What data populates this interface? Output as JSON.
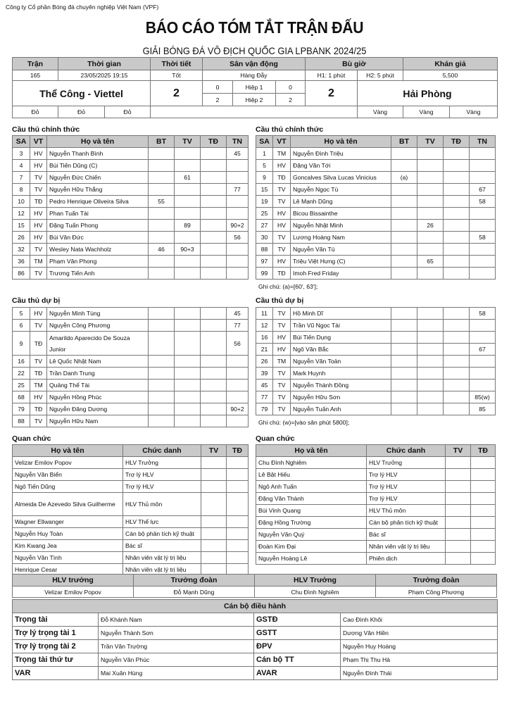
{
  "header": {
    "organization": "Công ty Cổ phần Bóng đá chuyên nghiệp Việt Nam (VPF)",
    "title": "BÁO CÁO TÓM TẮT TRẬN ĐẤU",
    "subtitle": "GIẢI BÓNG ĐÁ VÔ ĐỊCH QUỐC GIA LPBANK 2024/25"
  },
  "match": {
    "headers": [
      "Trận",
      "Thời gian",
      "Thời tiết",
      "Sân vận động",
      "Bù giờ",
      "Khán giả"
    ],
    "number": "165",
    "datetime": "23/05/2025 19:15",
    "weather": "Tốt",
    "stadium": "Hàng Đẫy",
    "stoppage_h1": "H1: 1 phút",
    "stoppage_h2": "H2: 5 phút",
    "attendance": "5,500",
    "home_team": "Thể Công - Viettel",
    "home_score": "2",
    "away_team": "Hải Phòng",
    "away_score": "2",
    "half1": {
      "label": "Hiệp 1",
      "home": "0",
      "away": "0"
    },
    "half2": {
      "label": "Hiệp 2",
      "home": "2",
      "away": "2"
    },
    "home_colors": [
      "Đỏ",
      "Đỏ",
      "Đỏ"
    ],
    "away_colors": [
      "Vàng",
      "Vàng",
      "Vàng"
    ]
  },
  "labels": {
    "starters": "Cầu thủ chính thức",
    "subs": "Cầu thủ dự bị",
    "officials": "Quan chức",
    "player_headers": [
      "SA",
      "VT",
      "Họ và tên",
      "BT",
      "TV",
      "TĐ",
      "TN"
    ],
    "official_headers": [
      "Họ và tên",
      "Chức danh",
      "TV",
      "TĐ"
    ],
    "home_note": "Ghi chú: (a)=[60', 63'];",
    "away_sub_note": "Ghi chú: (w)=[vào sân phút 5800];"
  },
  "home": {
    "starters": [
      [
        "3",
        "HV",
        "Nguyễn Thanh Bình",
        "",
        "",
        "",
        "45"
      ],
      [
        "4",
        "HV",
        "Bùi Tiến Dũng (C)",
        "",
        "",
        "",
        ""
      ],
      [
        "7",
        "TV",
        "Nguyễn Đức Chiến",
        "",
        "61",
        "",
        ""
      ],
      [
        "8",
        "TV",
        "Nguyễn Hữu Thắng",
        "",
        "",
        "",
        "77"
      ],
      [
        "10",
        "TĐ",
        "Pedro Henrique Oliveira Silva",
        "55",
        "",
        "",
        ""
      ],
      [
        "12",
        "HV",
        "Phan Tuấn Tài",
        "",
        "",
        "",
        ""
      ],
      [
        "15",
        "HV",
        "Đặng Tuấn Phong",
        "",
        "89",
        "",
        "90+2"
      ],
      [
        "26",
        "HV",
        "Bùi Văn Đức",
        "",
        "",
        "",
        "56"
      ],
      [
        "32",
        "TV",
        "Wesley Nata Wachholz",
        "46",
        "90+3",
        "",
        ""
      ],
      [
        "36",
        "TM",
        "Phạm Văn Phong",
        "",
        "",
        "",
        ""
      ],
      [
        "86",
        "TV",
        "Trương Tiến Anh",
        "",
        "",
        "",
        ""
      ]
    ],
    "subs": [
      [
        "5",
        "HV",
        "Nguyễn Minh Tùng",
        "",
        "",
        "",
        "45"
      ],
      [
        "6",
        "TV",
        "Nguyễn Công Phương",
        "",
        "",
        "",
        "77"
      ],
      [
        "9",
        "TĐ",
        "Amarildo Aparecido De Souza Junior",
        "",
        "",
        "",
        "56"
      ],
      [
        "16",
        "TV",
        "Lê Quốc Nhật Nam",
        "",
        "",
        "",
        ""
      ],
      [
        "22",
        "TĐ",
        "Trần Danh Trung",
        "",
        "",
        "",
        ""
      ],
      [
        "25",
        "TM",
        "Quảng Thể Tài",
        "",
        "",
        "",
        ""
      ],
      [
        "68",
        "HV",
        "Nguyễn Hồng Phúc",
        "",
        "",
        "",
        ""
      ],
      [
        "79",
        "TĐ",
        "Nguyễn Đăng Dương",
        "",
        "",
        "",
        "90+2"
      ],
      [
        "88",
        "TV",
        "Nguyễn Hữu Nam",
        "",
        "",
        "",
        ""
      ]
    ],
    "officials": [
      [
        "Velizar Emilov Popov",
        "HLV Trưởng",
        "",
        ""
      ],
      [
        "Nguyễn Văn Biển",
        "Trợ lý HLV",
        "",
        ""
      ],
      [
        "Ngô Tiến Dũng",
        "Trợ lý HLV",
        "",
        ""
      ],
      [
        "Almeida De Azevedo Silva Guilherme",
        "HLV Thủ môn",
        "",
        ""
      ],
      [
        "Wagner Ellwanger",
        "HLV Thể lực",
        "",
        ""
      ],
      [
        "Nguyễn Huy Toàn",
        "Cán bộ phân tích kỹ thuật",
        "",
        ""
      ],
      [
        "Kim Kwang Jea",
        "Bác sĩ",
        "",
        ""
      ],
      [
        "Nguyễn Văn Tình",
        "Nhân viên vật lý trị liệu",
        "",
        ""
      ],
      [
        "Henrique Cesar",
        "Nhân viên vật lý trị liệu",
        "",
        ""
      ]
    ]
  },
  "away": {
    "starters": [
      [
        "1",
        "TM",
        "Nguyễn Đình Triệu",
        "",
        "",
        "",
        ""
      ],
      [
        "5",
        "HV",
        "Đặng Văn Tới",
        "",
        "",
        "",
        ""
      ],
      [
        "9",
        "TĐ",
        "Goncalves Silva Lucas Vinicius",
        "(a)",
        "",
        "",
        ""
      ],
      [
        "15",
        "TV",
        "Nguyễn Ngọc Tú",
        "",
        "",
        "",
        "67"
      ],
      [
        "19",
        "TV",
        "Lê Mạnh Dũng",
        "",
        "",
        "",
        "58"
      ],
      [
        "25",
        "HV",
        "Bicou Bissainthe",
        "",
        "",
        "",
        ""
      ],
      [
        "27",
        "HV",
        "Nguyễn Nhật Minh",
        "",
        "26",
        "",
        ""
      ],
      [
        "30",
        "TV",
        "Lương Hoàng Nam",
        "",
        "",
        "",
        "58"
      ],
      [
        "88",
        "TV",
        "Nguyễn Văn Tú",
        "",
        "",
        "",
        ""
      ],
      [
        "97",
        "HV",
        "Triệu Việt Hưng (C)",
        "",
        "65",
        "",
        ""
      ],
      [
        "99",
        "TĐ",
        "Imoh Fred Friday",
        "",
        "",
        "",
        ""
      ]
    ],
    "subs": [
      [
        "11",
        "TV",
        "Hồ Minh Dĩ",
        "",
        "",
        "",
        "58"
      ],
      [
        "12",
        "TV",
        "Trần Vũ Ngọc Tài",
        "",
        "",
        "",
        ""
      ],
      [
        "16",
        "HV",
        "Bùi Tiến Dụng",
        "",
        "",
        "",
        ""
      ],
      [
        "21",
        "HV",
        "Ngô Văn Bắc",
        "",
        "",
        "",
        "67"
      ],
      [
        "26",
        "TM",
        "Nguyễn Văn Toản",
        "",
        "",
        "",
        ""
      ],
      [
        "39",
        "TV",
        "Mark Huynh",
        "",
        "",
        "",
        ""
      ],
      [
        "45",
        "TV",
        "Nguyễn Thành Đồng",
        "",
        "",
        "",
        ""
      ],
      [
        "77",
        "TV",
        "Nguyễn Hữu Sơn",
        "",
        "",
        "",
        "85(w)"
      ],
      [
        "79",
        "TV",
        "Nguyễn Tuấn Anh",
        "",
        "",
        "",
        "85"
      ]
    ],
    "officials": [
      [
        "Chu Đình Nghiêm",
        "HLV Trưởng",
        "",
        ""
      ],
      [
        "Lê Bật Hiếu",
        "Trợ lý HLV",
        "",
        ""
      ],
      [
        "Ngô Anh Tuấn",
        "Trợ lý HLV",
        "",
        ""
      ],
      [
        "Đặng Văn Thành",
        "Trợ lý HLV",
        "",
        ""
      ],
      [
        "Bùi Vinh Quang",
        "HLV Thủ môn",
        "",
        ""
      ],
      [
        "Đặng Hồng Trường",
        "Cán bộ phân tích kỹ thuật",
        "",
        ""
      ],
      [
        "Nguyễn Văn Quý",
        "Bác sĩ",
        "",
        ""
      ],
      [
        "Đoàn Kim Đại",
        "Nhân viên vật lý trị liệu",
        "",
        ""
      ],
      [
        "Nguyễn Hoàng Lê",
        "Phiên dịch",
        "",
        ""
      ]
    ]
  },
  "leaders": {
    "headers": [
      "HLV trưởng",
      "Trưởng đoàn",
      "HLV Trưởng",
      "Trưởng đoàn"
    ],
    "values": [
      "Velizar Emilov Popov",
      "Đỗ Mạnh Dũng",
      "Chu Đình Nghiêm",
      "Phạm Công Phương"
    ]
  },
  "match_officials": {
    "title": "Cán bộ điều hành",
    "rows": [
      [
        "Trọng tài",
        "Đỗ Khánh Nam",
        "GSTĐ",
        "Cao Đình Khôi"
      ],
      [
        "Trợ lý trọng tài 1",
        "Nguyễn Thành Sơn",
        "GSTT",
        "Dương Văn Hiền"
      ],
      [
        "Trợ lý trọng tài 2",
        "Trần Văn Trường",
        "ĐPV",
        "Nguyễn Huy Hoàng"
      ],
      [
        "Trọng tài thứ tư",
        "Nguyễn Văn Phúc",
        "Cán bộ TT",
        "Phạm Thị Thu Hà"
      ],
      [
        "VAR",
        "Mai Xuân Hùng",
        "AVAR",
        "Nguyễn Đình Thái"
      ]
    ]
  }
}
